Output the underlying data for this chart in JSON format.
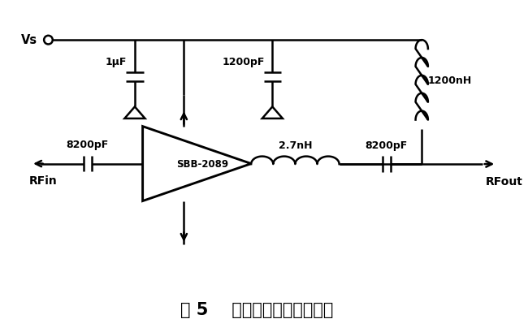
{
  "title": "图 5    射频发射功率放大电路",
  "title_fontsize": 15,
  "bg_color": "#ffffff",
  "line_color": "#000000",
  "line_width": 1.8,
  "amp_label": "SBB-2089",
  "cap1_label": "1μF",
  "cap2_label": "1200pF",
  "cap3_label": "8200pF",
  "cap4_label": "8200pF",
  "ind1_label": "1200nH",
  "ind2_label": "2.7nH",
  "vs_label": "Vs",
  "rfin_label": "RFin",
  "rfout_label": "RFout"
}
